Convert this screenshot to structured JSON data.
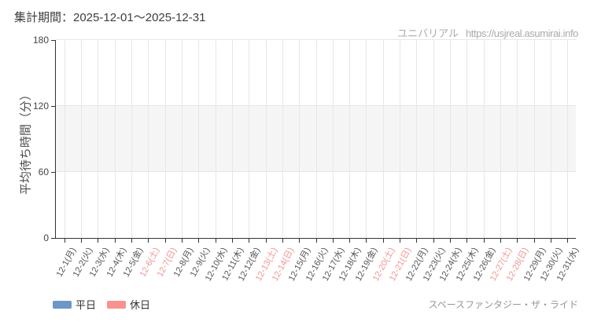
{
  "header": {
    "period": "集計期間：2025-12-01～2025-12-31",
    "brand": "ユニバリアル",
    "site_url": "https://usjreal.asumirai.info"
  },
  "footer": {
    "attraction": "スペースファンタジー・ザ・ライド"
  },
  "legend": {
    "items": [
      {
        "key": "weekday",
        "label": "平日",
        "color": "#6d97c6"
      },
      {
        "key": "holiday",
        "label": "休日",
        "color": "#fa9191"
      }
    ]
  },
  "colors": {
    "axis": "#333333",
    "gridline": "#e7e7e7",
    "plot_band": "#f5f5f5",
    "weekday_label": "#555555",
    "weekend_label": "#f29494",
    "muted_text": "#ababab"
  },
  "chart_data": {
    "type": "bar",
    "title": "",
    "xlabel": "",
    "ylabel": "平均待ち時間（分）",
    "ylim": [
      0,
      180
    ],
    "y_ticks": [
      0,
      60,
      120,
      180
    ],
    "plot_band": {
      "from": 60,
      "to": 120
    },
    "grid": true,
    "legend_position": "bottom-left",
    "categories": [
      "12-1(月)",
      "12-2(火)",
      "12-3(水)",
      "12-4(木)",
      "12-5(金)",
      "12-6(土)",
      "12-7(日)",
      "12-8(月)",
      "12-9(火)",
      "12-10(水)",
      "12-11(木)",
      "12-12(金)",
      "12-13(土)",
      "12-14(日)",
      "12-15(月)",
      "12-16(火)",
      "12-17(水)",
      "12-18(木)",
      "12-19(金)",
      "12-20(土)",
      "12-21(日)",
      "12-22(月)",
      "12-23(火)",
      "12-24(水)",
      "12-25(木)",
      "12-26(金)",
      "12-27(土)",
      "12-28(日)",
      "12-29(月)",
      "12-30(火)",
      "12-31(水)"
    ],
    "weekend_indices": [
      5,
      6,
      12,
      13,
      19,
      20,
      26,
      27
    ],
    "series": [
      {
        "name": "平日",
        "color": "#6d97c6",
        "values": []
      },
      {
        "name": "休日",
        "color": "#fa9191",
        "values": []
      }
    ]
  }
}
